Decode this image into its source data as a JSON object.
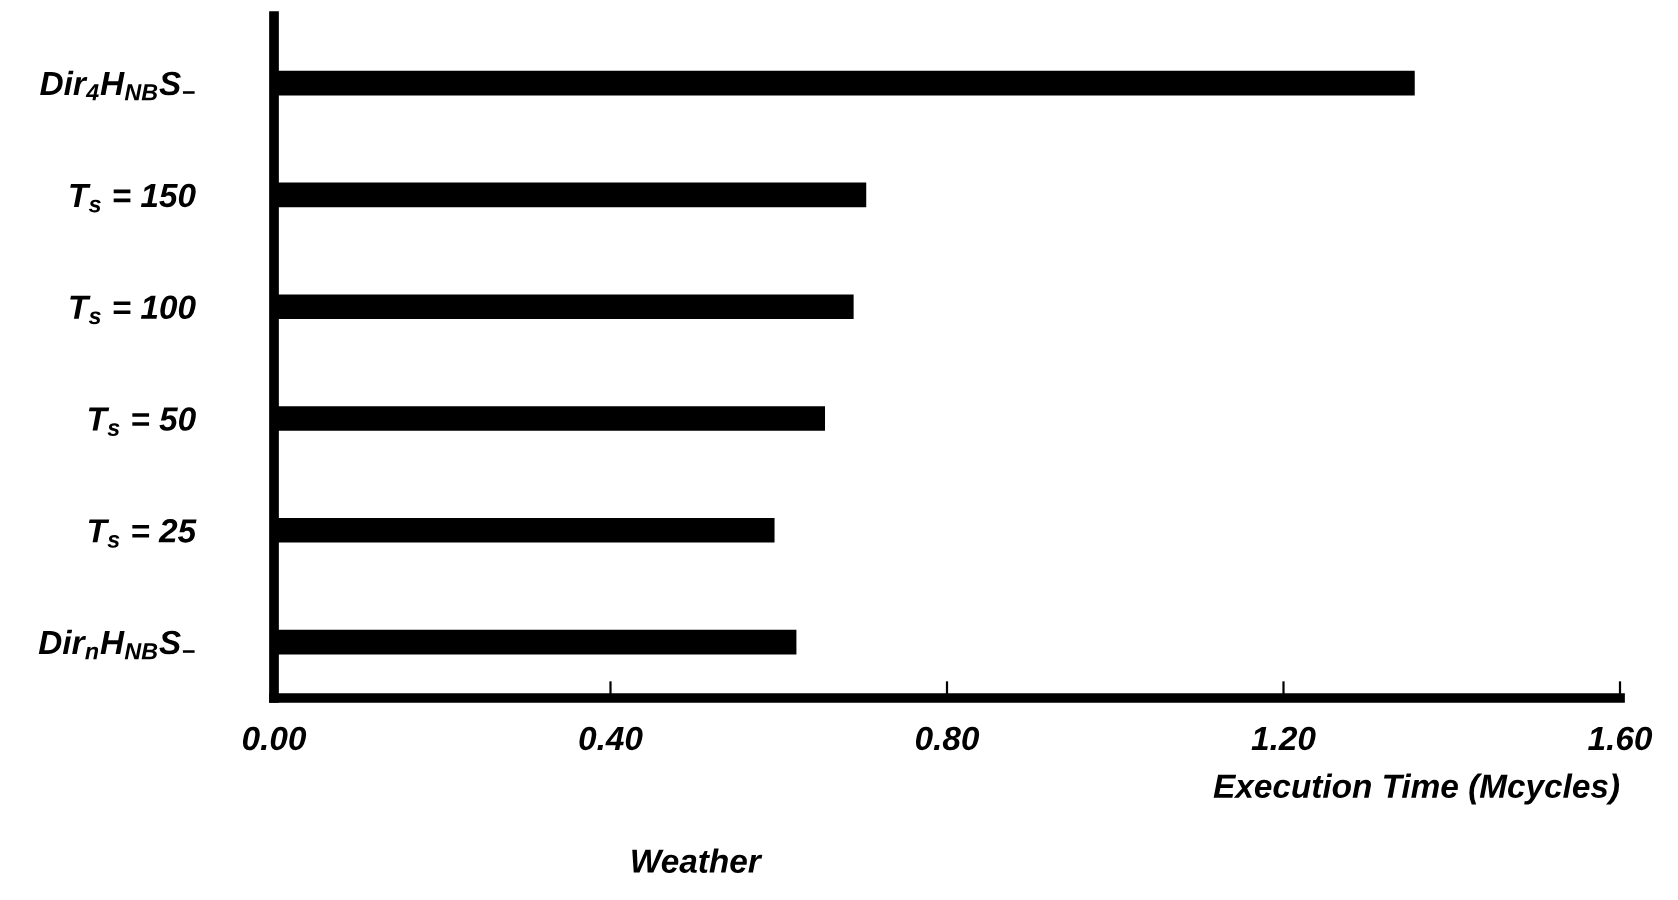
{
  "chart_data": {
    "type": "bar",
    "orientation": "horizontal",
    "title": "Weather",
    "xlabel": "Execution Time (Mcycles)",
    "categories": [
      "Dir$_{4}$H$_{NB}$S$_{−}$",
      "T$_{s}$ = 150",
      "T$_{s}$ = 100",
      "T$_{s}$ = 50",
      "T$_{s}$ = 25",
      "Dir$_{n}$H$_{NB}$S$_{−}$"
    ],
    "values": [
      1.356,
      0.704,
      0.689,
      0.655,
      0.595,
      0.621
    ],
    "color": "#000000",
    "xlim": [
      0,
      1.6
    ],
    "xticks": [
      {
        "value": 0,
        "label": "0.00"
      },
      {
        "value": 0.4,
        "label": "0.40"
      },
      {
        "value": 0.8,
        "label": "0.80"
      },
      {
        "value": 1.2,
        "label": "1.20"
      },
      {
        "value": 1.6,
        "label": "1.60"
      }
    ],
    "grid": false,
    "legend": false
  }
}
